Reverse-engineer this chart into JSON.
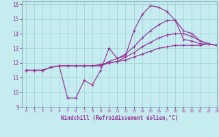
{
  "xlabel": "Windchill (Refroidissement éolien,°C)",
  "xlim": [
    -0.5,
    23
  ],
  "ylim": [
    9,
    16.2
  ],
  "yticks": [
    9,
    10,
    11,
    12,
    13,
    14,
    15,
    16
  ],
  "xticks": [
    0,
    1,
    2,
    3,
    4,
    5,
    6,
    7,
    8,
    9,
    10,
    11,
    12,
    13,
    14,
    15,
    16,
    17,
    18,
    19,
    20,
    21,
    22,
    23
  ],
  "bg_color": "#c5edf0",
  "line_color": "#993399",
  "grid_color": "#99cccc",
  "curves": [
    [
      11.5,
      11.5,
      11.5,
      11.7,
      11.8,
      9.6,
      9.6,
      10.8,
      10.5,
      11.5,
      13.0,
      12.3,
      12.5,
      14.2,
      15.3,
      15.9,
      15.8,
      15.5,
      14.9,
      13.6,
      13.5,
      13.3,
      13.3,
      13.2
    ],
    [
      11.5,
      11.5,
      11.5,
      11.7,
      11.8,
      11.8,
      11.8,
      11.8,
      11.8,
      11.8,
      12.1,
      12.3,
      12.6,
      13.1,
      13.7,
      14.2,
      14.6,
      14.9,
      14.9,
      14.2,
      14.0,
      13.5,
      13.3,
      13.2
    ],
    [
      11.5,
      11.5,
      11.5,
      11.7,
      11.8,
      11.8,
      11.8,
      11.8,
      11.8,
      11.8,
      12.0,
      12.1,
      12.4,
      12.7,
      13.1,
      13.4,
      13.7,
      13.9,
      14.0,
      14.0,
      13.8,
      13.5,
      13.3,
      13.2
    ],
    [
      11.5,
      11.5,
      11.5,
      11.7,
      11.8,
      11.8,
      11.8,
      11.8,
      11.8,
      11.9,
      12.0,
      12.1,
      12.2,
      12.4,
      12.6,
      12.8,
      13.0,
      13.1,
      13.2,
      13.2,
      13.2,
      13.2,
      13.3,
      13.2
    ]
  ]
}
